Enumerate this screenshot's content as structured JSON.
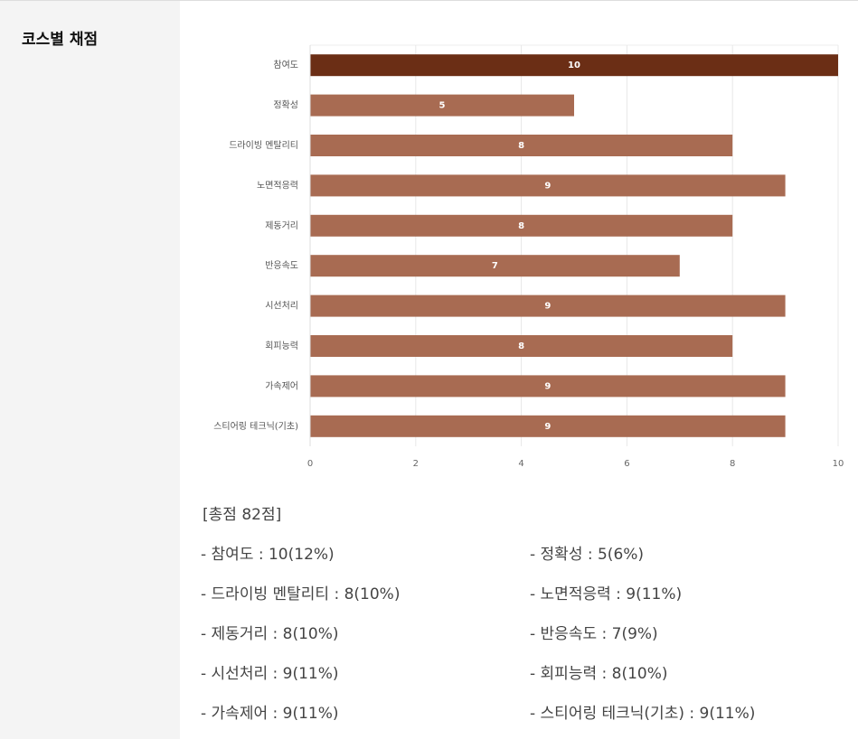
{
  "sidebar": {
    "title": "코스별 채점"
  },
  "chart_data": {
    "type": "bar",
    "orientation": "horizontal",
    "categories": [
      "참여도",
      "정확성",
      "드라이빙 멘탈리티",
      "노면적응력",
      "제동거리",
      "반응속도",
      "시선처리",
      "회피능력",
      "가속제어",
      "스티어링 테크닉(기초)"
    ],
    "values": [
      10,
      5,
      8,
      9,
      8,
      7,
      9,
      8,
      9,
      9
    ],
    "colors": [
      "#6b2e15",
      "#a86b52",
      "#a86b52",
      "#a86b52",
      "#a86b52",
      "#a86b52",
      "#a86b52",
      "#a86b52",
      "#a86b52",
      "#a86b52"
    ],
    "xlim": [
      0,
      10
    ],
    "xticks": [
      0,
      2,
      4,
      6,
      8,
      10
    ],
    "grid": true
  },
  "summary": {
    "total": "[총점 82점]",
    "items": [
      "- 참여도 : 10(12%)",
      "- 정확성 : 5(6%)",
      "- 드라이빙 멘탈리티 : 8(10%)",
      "- 노면적응력 : 9(11%)",
      "- 제동거리 : 8(10%)",
      "- 반응속도 : 7(9%)",
      "- 시선처리 : 9(11%)",
      "- 회피능력 : 8(10%)",
      "- 가속제어 : 9(11%)",
      "- 스티어링 테크닉(기초) : 9(11%)"
    ]
  }
}
